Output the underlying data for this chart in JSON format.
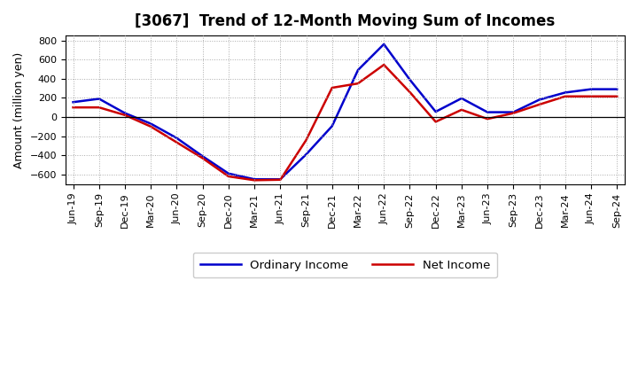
{
  "title": "[3067]  Trend of 12-Month Moving Sum of Incomes",
  "ylabel": "Amount (million yen)",
  "ylim": [
    -700,
    850
  ],
  "yticks": [
    -600,
    -400,
    -200,
    0,
    200,
    400,
    600,
    800
  ],
  "background_color": "#ffffff",
  "grid_color": "#aaaaaa",
  "labels": [
    "Jun-19",
    "Sep-19",
    "Dec-19",
    "Mar-20",
    "Jun-20",
    "Sep-20",
    "Dec-20",
    "Mar-21",
    "Jun-21",
    "Sep-21",
    "Dec-21",
    "Mar-22",
    "Jun-22",
    "Sep-22",
    "Dec-22",
    "Mar-23",
    "Jun-23",
    "Sep-23",
    "Dec-23",
    "Mar-24",
    "Jun-24",
    "Sep-24"
  ],
  "ordinary_income": [
    155,
    190,
    40,
    -70,
    -220,
    -410,
    -590,
    -650,
    -650,
    -390,
    -95,
    490,
    760,
    390,
    55,
    195,
    50,
    50,
    180,
    255,
    290,
    290
  ],
  "net_income": [
    100,
    100,
    20,
    -100,
    -265,
    -430,
    -620,
    -660,
    -655,
    -240,
    305,
    350,
    545,
    260,
    -50,
    75,
    -20,
    40,
    130,
    215,
    215,
    215
  ],
  "ordinary_color": "#0000cc",
  "net_color": "#cc0000",
  "line_width": 1.8,
  "legend_labels": [
    "Ordinary Income",
    "Net Income"
  ],
  "title_fontsize": 12,
  "tick_fontsize": 8,
  "ylabel_fontsize": 9
}
